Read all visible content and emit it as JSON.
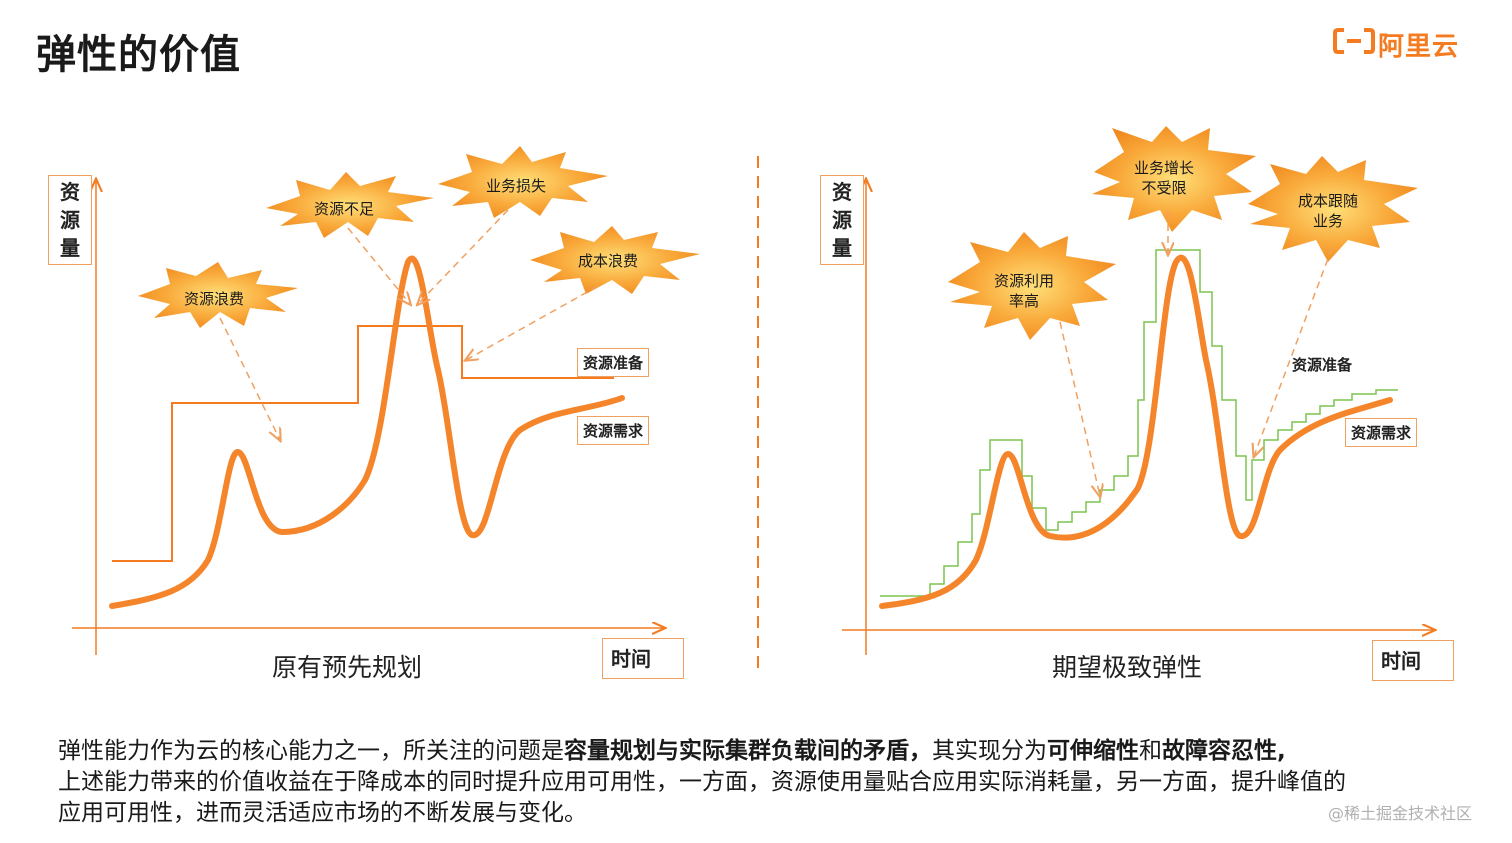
{
  "page": {
    "title": "弹性的价值",
    "logo_text": "阿里云",
    "watermark": "@稀土掘金技术社区"
  },
  "left_panel": {
    "y_axis": [
      "资",
      "源",
      "量"
    ],
    "x_axis": "时间",
    "caption": "原有预先规划",
    "line_labels": {
      "prepare": "资源准备",
      "demand": "资源需求"
    },
    "bursts": [
      "资源浪费",
      "资源不足",
      "业务损失",
      "成本浪费"
    ]
  },
  "right_panel": {
    "y_axis": [
      "资",
      "源",
      "量"
    ],
    "x_axis": "时间",
    "caption": "期望极致弹性",
    "line_labels": {
      "prepare": "资源准备",
      "demand": "资源需求"
    },
    "bursts": [
      {
        "line1": "资源利用",
        "line2": "率高"
      },
      {
        "line1": "业务增长",
        "line2": "不受限"
      },
      {
        "line1": "成本跟随",
        "line2": "业务"
      }
    ]
  },
  "description": {
    "p1_a": "弹性能力作为云的核心能力之一，所关注的问题是",
    "p1_b": "容量规划与实际集群负载间的矛盾，",
    "p1_c": "其实现分为",
    "p1_d": "可伸缩性",
    "p1_e": "和",
    "p1_f": "故障容忍性,",
    "p2": "上述能力带来的价值收益在于降成本的同时提升应用可用性，一方面，资源使用量贴合应用实际消耗量，另一方面，提升峰值的",
    "p3": "应用可用性，进而灵活适应市场的不断发展与变化。"
  },
  "colors": {
    "accent": "#f47b20",
    "demand_line": "#f08a30",
    "elastic_line": "#7cc44e",
    "burst_fill": "#f7a836"
  }
}
